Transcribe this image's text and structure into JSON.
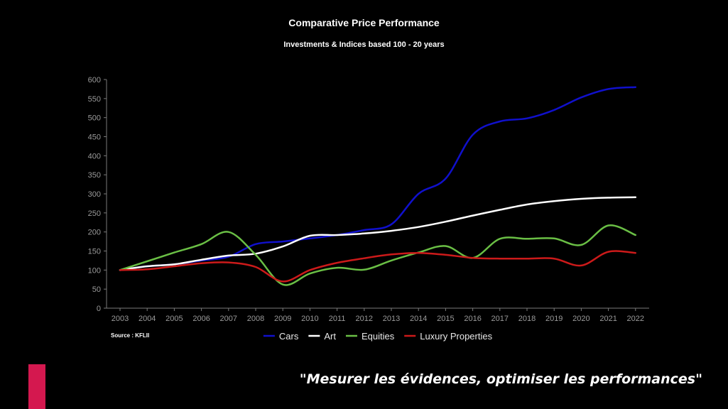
{
  "chart_data": {
    "type": "line",
    "title": "Comparative Price Performance",
    "subtitle": "Investments & Indices based 100 - 20 years",
    "xlabel": "",
    "ylabel": "",
    "x": [
      2003,
      2004,
      2005,
      2006,
      2007,
      2008,
      2009,
      2010,
      2011,
      2012,
      2013,
      2014,
      2015,
      2016,
      2017,
      2018,
      2019,
      2020,
      2021,
      2022
    ],
    "ylim": [
      0,
      600
    ],
    "yticks": [
      0,
      50,
      100,
      150,
      200,
      250,
      300,
      350,
      400,
      450,
      500,
      550,
      600
    ],
    "grid": false,
    "legend_position": "bottom",
    "series": [
      {
        "name": "Cars",
        "color": "#1010cc",
        "values": [
          100,
          110,
          115,
          125,
          135,
          168,
          175,
          183,
          192,
          205,
          220,
          300,
          340,
          455,
          490,
          498,
          520,
          553,
          575,
          580
        ]
      },
      {
        "name": "Art",
        "color": "#ffffff",
        "values": [
          100,
          110,
          115,
          127,
          138,
          143,
          162,
          190,
          192,
          196,
          203,
          213,
          227,
          243,
          258,
          272,
          281,
          287,
          290,
          291
        ]
      },
      {
        "name": "Equities",
        "color": "#6abf45",
        "values": [
          100,
          123,
          146,
          168,
          200,
          140,
          62,
          91,
          106,
          101,
          125,
          146,
          163,
          132,
          182,
          182,
          183,
          166,
          217,
          192
        ]
      },
      {
        "name": "Luxury Properties",
        "color": "#cc1a1a",
        "values": [
          100,
          102,
          110,
          118,
          120,
          108,
          70,
          100,
          119,
          131,
          141,
          145,
          140,
          132,
          130,
          130,
          130,
          112,
          148,
          145
        ]
      }
    ]
  },
  "source_note": "Source : KFLII",
  "tagline": "\"Mesurer les évidences, optimiser les performances\"",
  "accent_color": "#d4184f"
}
